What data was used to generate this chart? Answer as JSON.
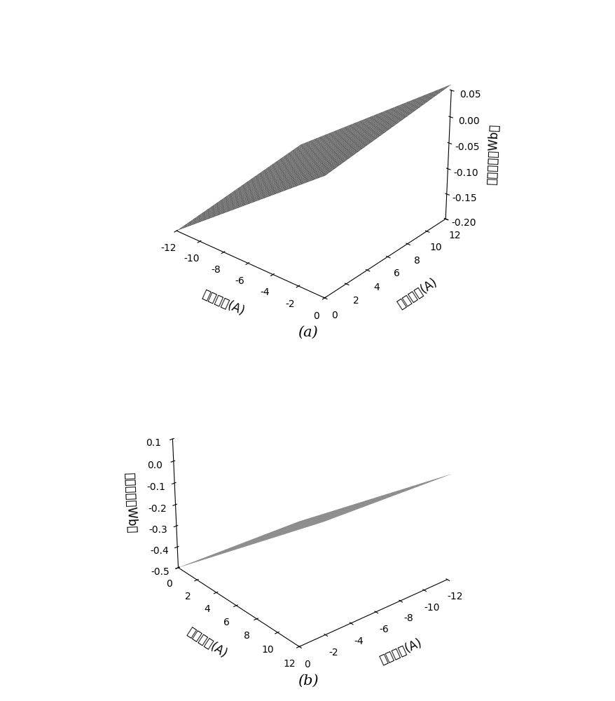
{
  "plot_a": {
    "title": "(a)",
    "xlabel": "直轴电流(A)",
    "ylabel": "交轴电流(A)",
    "zlabel": "直轴磁链（Wb）",
    "id_range": [
      -12,
      0
    ],
    "iq_range": [
      0,
      12
    ],
    "Ld": 0.01875,
    "psi_f": 0.025,
    "cross": 0.003,
    "zlim": [
      -0.2,
      0.05
    ],
    "zticks": [
      -0.2,
      -0.15,
      -0.1,
      -0.05,
      0.0,
      0.05
    ],
    "xticks": [
      -12,
      -10,
      -8,
      -6,
      -4,
      -2,
      0
    ],
    "yticks": [
      0,
      2,
      4,
      6,
      8,
      10,
      12
    ],
    "elev": 28,
    "azim": -50
  },
  "plot_b": {
    "title": "(b)",
    "xlabel": "直轴电流(A)",
    "ylabel": "交轴电流(A)",
    "zlabel": "交轴磁链（Wb）",
    "id_range": [
      0,
      -12
    ],
    "iq_range": [
      12,
      0
    ],
    "Lq": 0.046,
    "psi_q0": -0.5,
    "cross": 0.005,
    "zlim": [
      -0.5,
      0.1
    ],
    "zticks": [
      -0.5,
      -0.4,
      -0.3,
      -0.2,
      -0.1,
      0.0,
      0.1
    ],
    "xticks": [
      0,
      -2,
      -4,
      -6,
      -8,
      -10,
      -12
    ],
    "yticks": [
      12,
      10,
      8,
      6,
      4,
      2,
      0
    ],
    "elev": 28,
    "azim": -130
  },
  "surface_color": "#7a7a7a",
  "surface_alpha": 1.0,
  "background_color": "#ffffff",
  "label_font_size": 12,
  "tick_font_size": 10,
  "title_font_size": 15
}
